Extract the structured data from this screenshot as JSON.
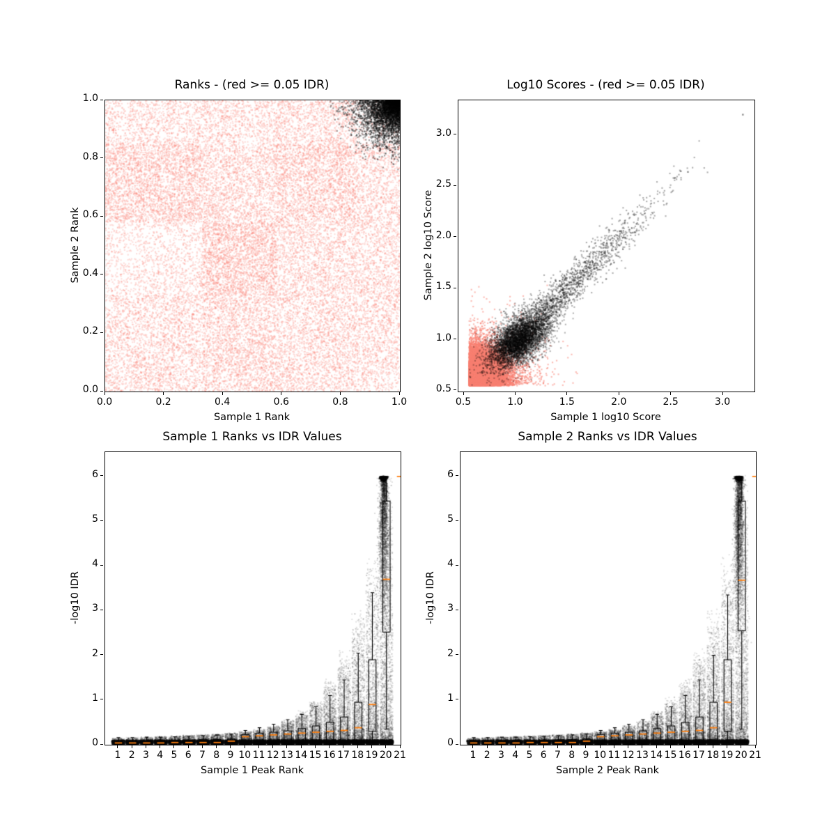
{
  "figure": {
    "background": "#ffffff",
    "description": "IDR analysis diagnostic figure with four subplots"
  },
  "colors": {
    "nonsignificant_points": "#FA8072",
    "significant_points": "#000000",
    "box_line": "#000000",
    "median_line": "#FF7F0E"
  },
  "chart_data": [
    {
      "id": "ranks",
      "type": "scatter",
      "title": "Ranks - (red >= 0.05 IDR)",
      "xlabel": "Sample 1 Rank",
      "ylabel": "Sample 2 Rank",
      "xlim": [
        0,
        1
      ],
      "ylim": [
        0,
        1
      ],
      "xticks": [
        0.0,
        0.2,
        0.4,
        0.6,
        0.8,
        1.0
      ],
      "xtick_labels": [
        "0.0",
        "0.2",
        "0.4",
        "0.6",
        "0.8",
        "1.0"
      ],
      "yticks": [
        0.0,
        0.2,
        0.4,
        0.6,
        0.8,
        1.0
      ],
      "ytick_labels": [
        "0.0",
        "0.2",
        "0.4",
        "0.6",
        "0.8",
        "1.0"
      ],
      "series": [
        {
          "name": "idr_ge_0.05_ranks",
          "color": "#FA8072",
          "alpha": 0.25,
          "size": 2.2,
          "n": 26000,
          "dist": "blocks",
          "edges_x": [
            0,
            0.33,
            0.58,
            0.85,
            1.0
          ],
          "edges_y": [
            0,
            0.33,
            0.58,
            0.85,
            1.0
          ],
          "weights": [
            [
              1.0,
              1.25,
              1.05,
              0.95
            ],
            [
              0.6,
              1.7,
              1.05,
              0.9
            ],
            [
              1.5,
              1.15,
              1.45,
              1.0
            ],
            [
              0.85,
              0.9,
              0.95,
              0.35
            ]
          ]
        },
        {
          "name": "idr_lt_0.05_ranks",
          "color": "#000000",
          "alpha": 0.35,
          "size": 2.2,
          "n": 4200,
          "dist": "corner_quarter",
          "corner": [
            1,
            1
          ],
          "radius_sigma": 0.085,
          "radius_max": 0.24
        }
      ]
    },
    {
      "id": "log10_scores",
      "type": "scatter",
      "title": "Log10 Scores - (red >= 0.05 IDR)",
      "xlabel": "Sample 1 log10 Score",
      "ylabel": "Sample 2 log10 Score",
      "xlim": [
        0.446,
        3.302
      ],
      "ylim": [
        0.493,
        3.34
      ],
      "xticks": [
        0.5,
        1.0,
        1.5,
        2.0,
        2.5,
        3.0
      ],
      "xtick_labels": [
        "0.5",
        "1.0",
        "1.5",
        "2.0",
        "2.5",
        "3.0"
      ],
      "yticks": [
        0.5,
        1.0,
        1.5,
        2.0,
        2.5,
        3.0
      ],
      "ytick_labels": [
        "0.5",
        "1.0",
        "1.5",
        "2.0",
        "2.5",
        "3.0"
      ],
      "series": [
        {
          "name": "idr_ge_0.05_scores",
          "color": "#FA8072",
          "alpha": 0.5,
          "size": 2.2,
          "n": 20000,
          "dist": "corner_exp",
          "origin": [
            0.55,
            0.55
          ],
          "sigma": 0.155,
          "fringe_frac": 0.08,
          "fringe_sigma": 0.3
        },
        {
          "name": "idr_lt_0.05_core",
          "color": "#000000",
          "alpha": 0.28,
          "size": 2.2,
          "n": 5200,
          "dist": "gauss",
          "center": [
            1.03,
            1.0
          ],
          "sigma": [
            0.145,
            0.135
          ],
          "corr": 0.55,
          "min": [
            0.553,
            0.553
          ]
        },
        {
          "name": "idr_lt_0.05_tail",
          "color": "#000000",
          "alpha": 0.3,
          "size": 2.2,
          "n": 1300,
          "dist": "diag_tail",
          "base": 1.22,
          "t_sigma": 0.5,
          "t_scale": 1.05,
          "jitter": 0.07,
          "min": [
            0.553,
            0.553
          ]
        },
        {
          "name": "idr_lt_0.05_outliers",
          "color": "#000000",
          "alpha": 0.45,
          "size": 2.4,
          "dist": "points",
          "points": [
            [
              2.53,
              2.58
            ],
            [
              2.66,
              2.64
            ],
            [
              3.19,
              3.2
            ]
          ]
        }
      ]
    },
    {
      "id": "sample1_ranks_vs_idr",
      "type": "boxplot_scatter",
      "title": "Sample 1 Ranks vs IDR Values",
      "xlabel": "Sample 1 Peak Rank",
      "ylabel": "-log10 IDR",
      "xlim": [
        0.062,
        21.0
      ],
      "ylim": [
        0,
        6.545
      ],
      "xticks": [
        1,
        2,
        3,
        4,
        5,
        6,
        7,
        8,
        9,
        10,
        11,
        12,
        13,
        14,
        15,
        16,
        17,
        18,
        19,
        20,
        21
      ],
      "xtick_labels": [
        "1",
        "2",
        "3",
        "4",
        "5",
        "6",
        "7",
        "8",
        "9",
        "10",
        "11",
        "12",
        "13",
        "14",
        "15",
        "16",
        "17",
        "18",
        "19",
        "20",
        "21"
      ],
      "yticks": [
        0,
        1,
        2,
        3,
        4,
        5,
        6
      ],
      "ytick_labels": [
        "0",
        "1",
        "2",
        "3",
        "4",
        "5",
        "6"
      ],
      "box_format": "[whisker_low, q1, median, q3, whisker_high] per rank 1..21",
      "boxes": [
        [
          0.0,
          0.01,
          0.04,
          0.09,
          0.16
        ],
        [
          0.0,
          0.01,
          0.04,
          0.09,
          0.16
        ],
        [
          0.0,
          0.01,
          0.04,
          0.09,
          0.17
        ],
        [
          0.0,
          0.01,
          0.04,
          0.1,
          0.17
        ],
        [
          0.0,
          0.01,
          0.05,
          0.1,
          0.18
        ],
        [
          0.0,
          0.01,
          0.05,
          0.1,
          0.19
        ],
        [
          0.0,
          0.01,
          0.05,
          0.11,
          0.2
        ],
        [
          0.0,
          0.02,
          0.05,
          0.12,
          0.22
        ],
        [
          0.0,
          0.02,
          0.08,
          0.13,
          0.24
        ],
        [
          0.0,
          0.02,
          0.18,
          0.23,
          0.32
        ],
        [
          0.0,
          0.02,
          0.2,
          0.26,
          0.38
        ],
        [
          0.0,
          0.02,
          0.22,
          0.28,
          0.46
        ],
        [
          0.0,
          0.02,
          0.24,
          0.31,
          0.56
        ],
        [
          0.0,
          0.03,
          0.26,
          0.36,
          0.68
        ],
        [
          0.0,
          0.03,
          0.28,
          0.42,
          0.85
        ],
        [
          0.0,
          0.03,
          0.3,
          0.5,
          1.1
        ],
        [
          0.0,
          0.04,
          0.32,
          0.62,
          1.45
        ],
        [
          0.0,
          0.04,
          0.38,
          0.95,
          2.05
        ],
        [
          0.05,
          0.3,
          0.9,
          1.9,
          3.4
        ],
        [
          0.35,
          2.52,
          3.7,
          5.45,
          6.0
        ],
        [
          6.0,
          6.0,
          6.0,
          6.0,
          6.0
        ]
      ],
      "median_color": "#FF7F0E",
      "series": [
        {
          "name": "idr_scatter",
          "color": "#000000",
          "alpha": 0.12,
          "size": 2.0,
          "n": 26000,
          "dist": "rank_wedge",
          "ranks": 20,
          "w_base": 0.25,
          "w_pow": 1.4,
          "x_jitter": 0.45,
          "upow": 3.4,
          "env": {
            "base": 0.12,
            "lin": 0.012,
            "coef": 5.9,
            "pow": 7.0
          }
        },
        {
          "name": "low_idr_band",
          "color": "#000000",
          "alpha": 0.32,
          "size": 2.0,
          "n": 9000,
          "dist": "rank_band",
          "y": [
            0.035,
            0.105
          ],
          "x_jitter": 0.48
        },
        {
          "name": "rank20_column",
          "color": "#000000",
          "alpha": 0.15,
          "size": 2.0,
          "n": 2600,
          "dist": "rank_column",
          "x_mu": 19.82,
          "x_sigma": 0.13,
          "y_top": 6.0,
          "y_sigma": 1.6,
          "y_min": 0.3
        },
        {
          "name": "rank20_cap_cluster",
          "color": "#000000",
          "alpha": 0.5,
          "size": 2.2,
          "n": 700,
          "dist": "cap_blob",
          "x_mu": 19.8,
          "x_sigma": 0.1,
          "y": 6.0,
          "y_sigma": 0.04
        }
      ]
    },
    {
      "id": "sample2_ranks_vs_idr",
      "type": "boxplot_scatter",
      "title": "Sample 2 Ranks vs IDR Values",
      "xlabel": "Sample 2 Peak Rank",
      "ylabel": "-log10 IDR",
      "xlim": [
        0.062,
        21.0
      ],
      "ylim": [
        0,
        6.545
      ],
      "xticks": [
        1,
        2,
        3,
        4,
        5,
        6,
        7,
        8,
        9,
        10,
        11,
        12,
        13,
        14,
        15,
        16,
        17,
        18,
        19,
        20,
        21
      ],
      "xtick_labels": [
        "1",
        "2",
        "3",
        "4",
        "5",
        "6",
        "7",
        "8",
        "9",
        "10",
        "11",
        "12",
        "13",
        "14",
        "15",
        "16",
        "17",
        "18",
        "19",
        "20",
        "21"
      ],
      "yticks": [
        0,
        1,
        2,
        3,
        4,
        5,
        6
      ],
      "ytick_labels": [
        "0",
        "1",
        "2",
        "3",
        "4",
        "5",
        "6"
      ],
      "box_format": "[whisker_low, q1, median, q3, whisker_high] per rank 1..21",
      "boxes": [
        [
          0.0,
          0.01,
          0.04,
          0.09,
          0.16
        ],
        [
          0.0,
          0.01,
          0.04,
          0.09,
          0.16
        ],
        [
          0.0,
          0.01,
          0.04,
          0.09,
          0.17
        ],
        [
          0.0,
          0.01,
          0.04,
          0.1,
          0.17
        ],
        [
          0.0,
          0.01,
          0.05,
          0.1,
          0.18
        ],
        [
          0.0,
          0.01,
          0.05,
          0.1,
          0.19
        ],
        [
          0.0,
          0.01,
          0.05,
          0.11,
          0.2
        ],
        [
          0.0,
          0.02,
          0.05,
          0.12,
          0.22
        ],
        [
          0.0,
          0.02,
          0.08,
          0.13,
          0.24
        ],
        [
          0.0,
          0.02,
          0.18,
          0.23,
          0.32
        ],
        [
          0.0,
          0.02,
          0.2,
          0.26,
          0.38
        ],
        [
          0.0,
          0.02,
          0.22,
          0.28,
          0.46
        ],
        [
          0.0,
          0.02,
          0.24,
          0.31,
          0.56
        ],
        [
          0.0,
          0.03,
          0.26,
          0.36,
          0.68
        ],
        [
          0.0,
          0.03,
          0.28,
          0.42,
          0.85
        ],
        [
          0.0,
          0.03,
          0.3,
          0.5,
          1.1
        ],
        [
          0.0,
          0.04,
          0.32,
          0.62,
          1.45
        ],
        [
          0.0,
          0.04,
          0.38,
          0.95,
          2.0
        ],
        [
          0.05,
          0.3,
          0.95,
          1.9,
          3.35
        ],
        [
          0.35,
          2.55,
          3.68,
          5.45,
          6.0
        ],
        [
          6.0,
          6.0,
          6.0,
          6.0,
          6.0
        ]
      ],
      "median_color": "#FF7F0E",
      "series": [
        {
          "name": "idr_scatter",
          "color": "#000000",
          "alpha": 0.12,
          "size": 2.0,
          "n": 26000,
          "dist": "rank_wedge",
          "ranks": 20,
          "w_base": 0.25,
          "w_pow": 1.4,
          "x_jitter": 0.45,
          "upow": 3.4,
          "env": {
            "base": 0.12,
            "lin": 0.012,
            "coef": 5.9,
            "pow": 7.0
          }
        },
        {
          "name": "low_idr_band",
          "color": "#000000",
          "alpha": 0.32,
          "size": 2.0,
          "n": 9000,
          "dist": "rank_band",
          "y": [
            0.035,
            0.105
          ],
          "x_jitter": 0.48
        },
        {
          "name": "rank20_column",
          "color": "#000000",
          "alpha": 0.15,
          "size": 2.0,
          "n": 2600,
          "dist": "rank_column",
          "x_mu": 19.82,
          "x_sigma": 0.13,
          "y_top": 6.0,
          "y_sigma": 1.6,
          "y_min": 0.3
        },
        {
          "name": "rank20_cap_cluster",
          "color": "#000000",
          "alpha": 0.5,
          "size": 2.2,
          "n": 700,
          "dist": "cap_blob",
          "x_mu": 19.8,
          "x_sigma": 0.1,
          "y": 6.0,
          "y_sigma": 0.04
        }
      ]
    }
  ]
}
